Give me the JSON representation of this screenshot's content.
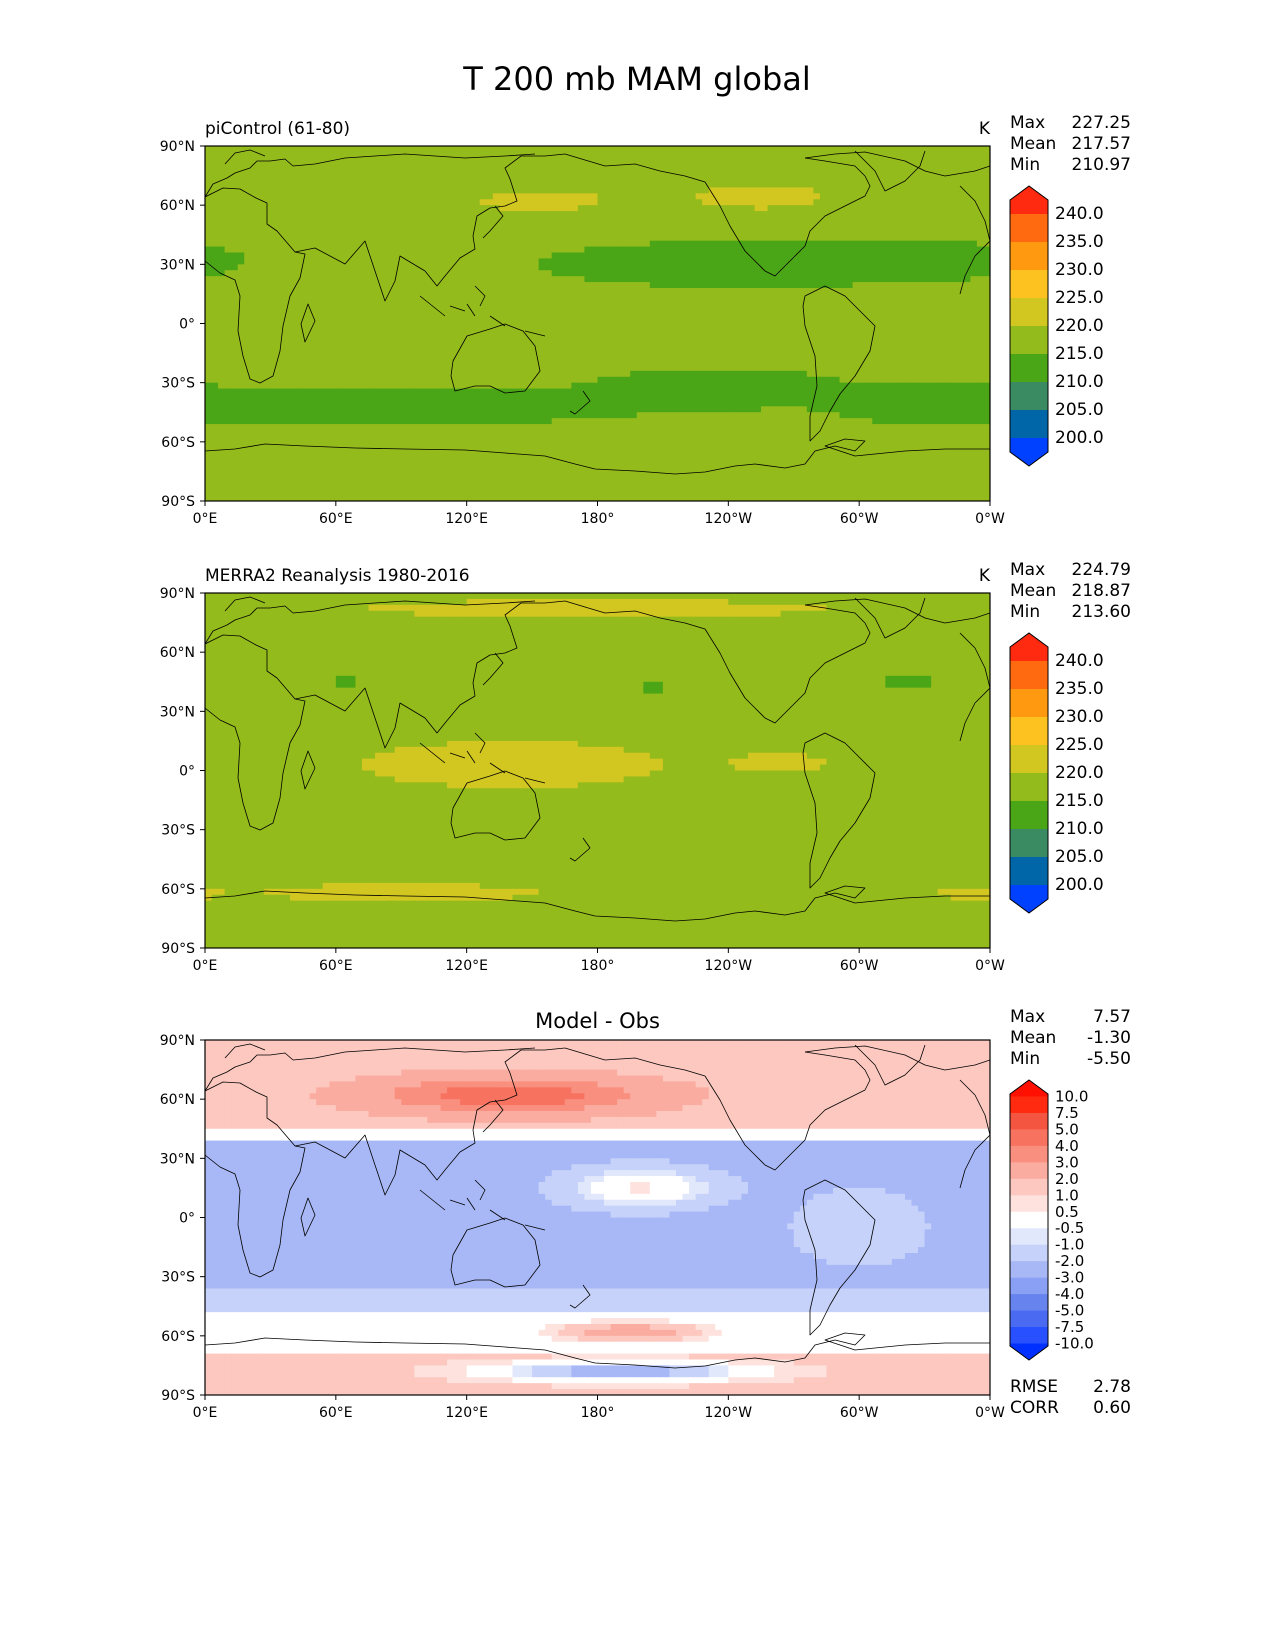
{
  "figure": {
    "title": "T 200 mb MAM global"
  },
  "chart_data": [
    {
      "type": "heatmap",
      "panel": "model",
      "left_label": "piControl (61-80)",
      "center_title": "",
      "units": "K",
      "stats": [
        {
          "label": "Max",
          "value": "227.25"
        },
        {
          "label": "Mean",
          "value": "217.57"
        },
        {
          "label": "Min",
          "value": "210.97"
        }
      ],
      "xticks": [
        "0°E",
        "60°E",
        "120°E",
        "180°",
        "120°W",
        "60°W",
        "0°W"
      ],
      "yticks": [
        "90°N",
        "60°N",
        "30°N",
        "0°",
        "30°S",
        "60°S",
        "90°S"
      ],
      "colorbar": {
        "levels": [
          "200.0",
          "205.0",
          "210.0",
          "215.0",
          "220.0",
          "225.0",
          "230.0",
          "235.0",
          "240.0"
        ],
        "colors": [
          "#0040ff",
          "#0066a8",
          "#3a8a62",
          "#4aa616",
          "#94bb1c",
          "#d2c620",
          "#fdc220",
          "#ff9a10",
          "#ff6a10",
          "#ff2a10"
        ]
      },
      "field": {
        "background": 215.5,
        "blobs": [
          {
            "lon": 150,
            "lat": 64,
            "lon_half_width": 55,
            "lat_half_width": 11,
            "value": 223
          },
          {
            "lon": 255,
            "lat": 65,
            "lon_half_width": 45,
            "lat_half_width": 10,
            "value": 223
          },
          {
            "lon": 200,
            "lat": 78,
            "lon_half_width": 130,
            "lat_half_width": 10,
            "value": 219
          },
          {
            "lon": 80,
            "lat": 72,
            "lon_half_width": 110,
            "lat_half_width": 14,
            "value": 218.5
          },
          {
            "lon": 240,
            "lat": 30,
            "lon_half_width": 75,
            "lat_half_width": 10,
            "value": 213
          },
          {
            "lon": 320,
            "lat": 32,
            "lon_half_width": 50,
            "lat_half_width": 9,
            "value": 213
          },
          {
            "lon": 90,
            "lat": -42,
            "lon_half_width": 100,
            "lat_half_width": 9,
            "value": 213
          },
          {
            "lon": 235,
            "lat": -33,
            "lon_half_width": 50,
            "lat_half_width": 9,
            "value": 213
          },
          {
            "lon": 330,
            "lat": -40,
            "lon_half_width": 40,
            "lat_half_width": 9,
            "value": 213
          },
          {
            "lon": 120,
            "lat": -63,
            "lon_half_width": 140,
            "lat_half_width": 8,
            "value": 219
          },
          {
            "lon": 340,
            "lat": -63,
            "lon_half_width": 30,
            "lat_half_width": 5,
            "value": 219
          }
        ]
      }
    },
    {
      "type": "heatmap",
      "panel": "obs",
      "left_label": "MERRA2 Reanalysis 1980-2016",
      "center_title": "",
      "units": "K",
      "stats": [
        {
          "label": "Max",
          "value": "224.79"
        },
        {
          "label": "Mean",
          "value": "218.87"
        },
        {
          "label": "Min",
          "value": "213.60"
        }
      ],
      "xticks": [
        "0°E",
        "60°E",
        "120°E",
        "180°",
        "120°W",
        "60°W",
        "0°W"
      ],
      "yticks": [
        "90°N",
        "60°N",
        "30°N",
        "0°",
        "30°S",
        "60°S",
        "90°S"
      ],
      "colorbar": {
        "levels": [
          "200.0",
          "205.0",
          "210.0",
          "215.0",
          "220.0",
          "225.0",
          "230.0",
          "235.0",
          "240.0"
        ],
        "colors": [
          "#0040ff",
          "#0066a8",
          "#3a8a62",
          "#4aa616",
          "#94bb1c",
          "#d2c620",
          "#fdc220",
          "#ff9a10",
          "#ff6a10",
          "#ff2a10"
        ]
      },
      "field": {
        "background": 217.5,
        "blobs": [
          {
            "lon": 180,
            "lat": 82,
            "lon_half_width": 200,
            "lat_half_width": 8,
            "value": 221
          },
          {
            "lon": 140,
            "lat": 3,
            "lon_half_width": 130,
            "lat_half_width": 22,
            "value": 221
          },
          {
            "lon": 265,
            "lat": 4,
            "lon_half_width": 30,
            "lat_half_width": 7,
            "value": 221
          },
          {
            "lon": 90,
            "lat": -62,
            "lon_half_width": 120,
            "lat_half_width": 8,
            "value": 221
          },
          {
            "lon": 350,
            "lat": -62,
            "lon_half_width": 20,
            "lat_half_width": 5,
            "value": 221
          },
          {
            "lon": 65,
            "lat": 45,
            "lon_half_width": 12,
            "lat_half_width": 4,
            "value": 214
          },
          {
            "lon": 205,
            "lat": 42,
            "lon_half_width": 14,
            "lat_half_width": 4,
            "value": 214
          },
          {
            "lon": 322,
            "lat": 45,
            "lon_half_width": 22,
            "lat_half_width": 6,
            "value": 214
          },
          {
            "lon": 55,
            "lat": -45,
            "lon_half_width": 18,
            "lat_half_width": 2,
            "value": 214
          }
        ]
      }
    },
    {
      "type": "heatmap",
      "panel": "difference",
      "left_label": "",
      "center_title": "Model - Obs",
      "units": "",
      "stats": [
        {
          "label": "Max",
          "value": "7.57"
        },
        {
          "label": "Mean",
          "value": "-1.30"
        },
        {
          "label": "Min",
          "value": "-5.50"
        }
      ],
      "extra_stats": [
        {
          "label": "RMSE",
          "value": "2.78"
        },
        {
          "label": "CORR",
          "value": "0.60"
        }
      ],
      "xticks": [
        "0°E",
        "60°E",
        "120°E",
        "180°",
        "120°W",
        "60°W",
        "0°W"
      ],
      "yticks": [
        "90°N",
        "60°N",
        "30°N",
        "0°",
        "30°S",
        "60°S",
        "90°S"
      ],
      "colorbar": {
        "levels": [
          "-10.0",
          "-7.5",
          "-5.0",
          "-4.0",
          "-3.0",
          "-2.0",
          "-1.0",
          "-0.5",
          "0.5",
          "1.0",
          "2.0",
          "3.0",
          "4.0",
          "5.0",
          "7.5",
          "10.0"
        ],
        "colors": [
          "#0030ff",
          "#2950ff",
          "#4a6af2",
          "#6683ee",
          "#8aa0f4",
          "#a8b8f6",
          "#c6d2f9",
          "#e2e8fb",
          "#ffffff",
          "#fde2de",
          "#fcc8bf",
          "#fbaca0",
          "#f98f7f",
          "#f77360",
          "#f45540",
          "#ff2a10",
          "#ff1000"
        ]
      },
      "field": {
        "background": -0.2,
        "bands": [
          {
            "lat_from": 90,
            "lat_to": 45,
            "value": 1.8
          },
          {
            "lat_from": 45,
            "lat_to": 38,
            "value": 0.0
          },
          {
            "lat_from": 38,
            "lat_to": -35,
            "value": -2.6
          },
          {
            "lat_from": -35,
            "lat_to": -48,
            "value": -1.6
          },
          {
            "lat_from": -48,
            "lat_to": -70,
            "value": 0.0
          },
          {
            "lat_from": -70,
            "lat_to": -90,
            "value": 1.2
          }
        ],
        "blobs": [
          {
            "lon": 140,
            "lat": 62,
            "lon_half_width": 60,
            "lat_half_width": 9,
            "value": 5.0
          },
          {
            "lon": 290,
            "lat": 60,
            "lon_half_width": 40,
            "lat_half_width": 6,
            "value": 2.0
          },
          {
            "lon": 80,
            "lat": 28,
            "lon_half_width": 25,
            "lat_half_width": 5,
            "value": -2.5
          },
          {
            "lon": 200,
            "lat": 15,
            "lon_half_width": 40,
            "lat_half_width": 12,
            "value": 0.6
          },
          {
            "lon": 300,
            "lat": -5,
            "lon_half_width": 35,
            "lat_half_width": 22,
            "value": -1.0
          },
          {
            "lon": 195,
            "lat": -58,
            "lon_half_width": 35,
            "lat_half_width": 5,
            "value": 3.0
          },
          {
            "lon": 190,
            "lat": -78,
            "lon_half_width": 60,
            "lat_half_width": 5,
            "value": -3.0
          }
        ]
      }
    }
  ]
}
